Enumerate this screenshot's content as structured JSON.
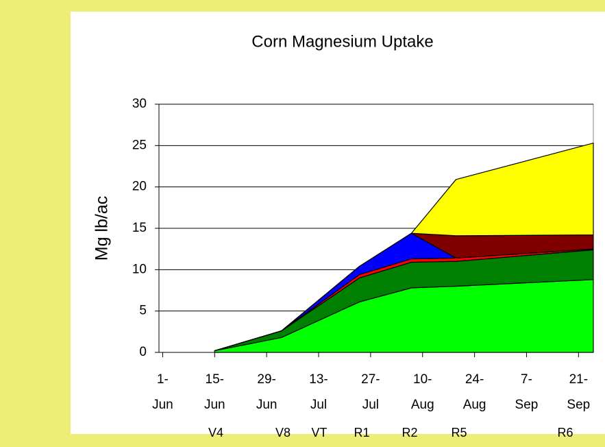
{
  "chart_data": {
    "type": "area",
    "stacked": true,
    "title": "Corn Magnesium Uptake",
    "y_label": "Mg lb/ac",
    "x": [
      "15-Jun",
      "3-Jul",
      "24-Jul",
      "7-Aug",
      "19-Aug",
      "25-Sep"
    ],
    "series": [
      {
        "color": "#00ff00",
        "values": [
          0.2,
          1.8,
          6.1,
          7.8,
          8.0,
          8.8
        ]
      },
      {
        "color": "#008000",
        "values": [
          0,
          0.8,
          2.9,
          3.1,
          3.0,
          3.6
        ]
      },
      {
        "color": "#ff0000",
        "values": [
          0,
          0,
          0.4,
          0.4,
          0.4,
          0.1
        ]
      },
      {
        "color": "#0000ff",
        "values": [
          0,
          0,
          1.0,
          3.1,
          0,
          0
        ]
      },
      {
        "color": "#800000",
        "values": [
          0,
          0,
          0,
          0,
          2.7,
          1.7
        ]
      },
      {
        "color": "#ffff00",
        "values": [
          0,
          0,
          0,
          0,
          6.8,
          11.1
        ]
      }
    ],
    "xlim": [
      "31-May",
      "25-Sep"
    ],
    "xticks": [
      "1-Jun",
      "15-Jun",
      "29-Jun",
      "13-Jul",
      "27-Jul",
      "10-Aug",
      "24-Aug",
      "7-Sep",
      "21-Sep"
    ],
    "ylim": [
      0,
      30
    ],
    "yticks": [
      0,
      5,
      10,
      15,
      20,
      25,
      30
    ],
    "grid": true,
    "stages": [
      "V4",
      "V8",
      "VT",
      "R1",
      "R2",
      "R5",
      "R6"
    ]
  }
}
